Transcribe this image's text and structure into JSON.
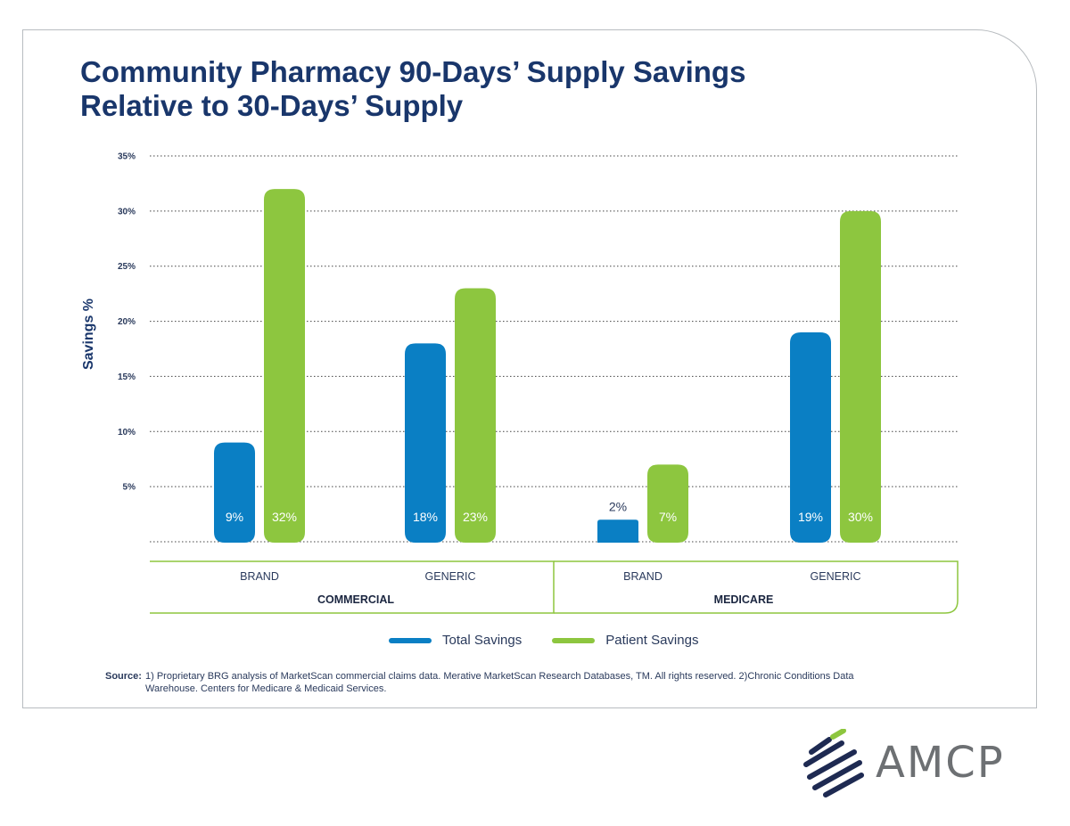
{
  "title_line1": "Community Pharmacy 90-Days’ Supply Savings",
  "title_line2": "Relative to 30-Days’ Supply",
  "colors": {
    "total": "#0a7fc4",
    "patient": "#8dc63f",
    "navy": "#19366b"
  },
  "chart_data": {
    "type": "bar",
    "ylabel": "Savings %",
    "ylim": [
      0,
      35
    ],
    "y_ticks": [
      "35%",
      "30%",
      "25%",
      "20%",
      "15%",
      "10%",
      "5%"
    ],
    "y_tick_values": [
      35,
      30,
      25,
      20,
      15,
      10,
      5
    ],
    "categories": [
      "BRAND",
      "GENERIC",
      "BRAND",
      "GENERIC"
    ],
    "groups": [
      {
        "label": "COMMERCIAL",
        "categories": [
          0,
          1
        ]
      },
      {
        "label": "MEDICARE",
        "categories": [
          2,
          3
        ]
      }
    ],
    "series": [
      {
        "name": "Total Savings",
        "values": [
          9,
          18,
          2,
          19
        ],
        "labels": [
          "9%",
          "18%",
          "2%",
          "19%"
        ]
      },
      {
        "name": "Patient Savings",
        "values": [
          32,
          23,
          7,
          30
        ],
        "labels": [
          "32%",
          "23%",
          "7%",
          "30%"
        ]
      }
    ],
    "legend": "bottom"
  },
  "source_label": "Source:",
  "source_text": "1) Proprietary BRG analysis of MarketScan commercial claims data. Merative MarketScan Research Databases, TM. All rights reserved. 2)Chronic Conditions Data Warehouse. Centers for Medicare & Medicaid Services.",
  "logo_text": "AMCP"
}
